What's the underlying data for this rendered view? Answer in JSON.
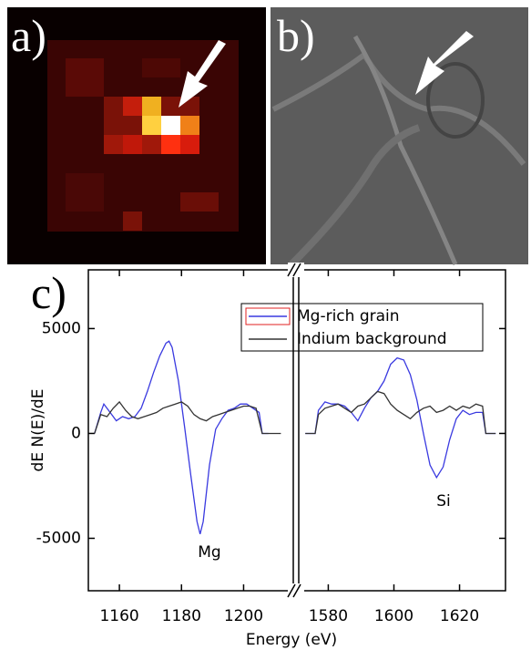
{
  "panel_labels": [
    "a)",
    "b)",
    "c)"
  ],
  "chart_data": [
    {
      "type": "line",
      "ylabel": "dE N(E)/dE",
      "xlabel": "Energy (eV)",
      "xlim": [
        1150,
        1216
      ],
      "xticks": [
        1160,
        1180,
        1200
      ],
      "ylim": [
        -7500,
        7800
      ],
      "yticks": [
        5000,
        0,
        -5000
      ],
      "legend": "upper right",
      "annotations": [
        "Mg"
      ],
      "series": [
        {
          "name": "Mg-rich grain",
          "color": "#3a3ae0",
          "x": [
            1152,
            1154,
            1155,
            1157,
            1159,
            1161,
            1163,
            1165,
            1167,
            1169,
            1171,
            1173,
            1175,
            1176,
            1177,
            1179,
            1181,
            1183,
            1185,
            1186,
            1187,
            1189,
            1191,
            1193,
            1195,
            1197,
            1199,
            1201,
            1203,
            1205,
            1206,
            1208
          ],
          "values": [
            0,
            1000,
            1400,
            1000,
            600,
            800,
            700,
            800,
            1200,
            2000,
            2900,
            3700,
            4300,
            4400,
            4100,
            2500,
            300,
            -2000,
            -4200,
            -4800,
            -4200,
            -1500,
            200,
            700,
            1100,
            1200,
            1400,
            1400,
            1200,
            1000,
            0,
            0
          ]
        },
        {
          "name": "Indium background",
          "color": "#333333",
          "x": [
            1152,
            1154,
            1156,
            1158,
            1160,
            1162,
            1164,
            1166,
            1168,
            1170,
            1172,
            1174,
            1176,
            1178,
            1180,
            1182,
            1184,
            1186,
            1188,
            1190,
            1192,
            1194,
            1196,
            1198,
            1200,
            1202,
            1204,
            1206,
            1212
          ],
          "values": [
            0,
            900,
            800,
            1200,
            1500,
            1100,
            800,
            700,
            800,
            900,
            1000,
            1200,
            1300,
            1400,
            1500,
            1300,
            900,
            700,
            600,
            800,
            900,
            1000,
            1100,
            1200,
            1300,
            1300,
            1200,
            0,
            0
          ]
        }
      ]
    },
    {
      "type": "line",
      "xlim": [
        1571,
        1634
      ],
      "xticks": [
        1580,
        1600,
        1620
      ],
      "ylim": [
        -7500,
        7800
      ],
      "annotations": [
        "Si"
      ],
      "series": [
        {
          "color": "#3a3ae0",
          "x": [
            1573,
            1576,
            1577,
            1579,
            1581,
            1583,
            1585,
            1587,
            1589,
            1591,
            1593,
            1595,
            1597,
            1599,
            1601,
            1603,
            1605,
            1607,
            1609,
            1611,
            1613,
            1615,
            1617,
            1619,
            1621,
            1623,
            1625,
            1627,
            1628,
            1631
          ],
          "values": [
            0,
            0,
            1100,
            1500,
            1400,
            1400,
            1300,
            1000,
            600,
            1200,
            1700,
            2000,
            2500,
            3300,
            3600,
            3500,
            2800,
            1600,
            0,
            -1500,
            -2100,
            -1600,
            -300,
            700,
            1100,
            900,
            1000,
            1000,
            0,
            0
          ]
        },
        {
          "color": "#333333",
          "x": [
            1573,
            1576,
            1577,
            1579,
            1581,
            1583,
            1585,
            1587,
            1589,
            1591,
            1593,
            1595,
            1597,
            1599,
            1601,
            1603,
            1605,
            1607,
            1609,
            1611,
            1613,
            1615,
            1617,
            1619,
            1621,
            1623,
            1625,
            1627,
            1628,
            1631
          ],
          "values": [
            0,
            0,
            900,
            1200,
            1300,
            1400,
            1200,
            1000,
            1300,
            1400,
            1700,
            2000,
            1900,
            1400,
            1100,
            900,
            700,
            1000,
            1200,
            1300,
            1000,
            1100,
            1300,
            1100,
            1300,
            1200,
            1400,
            1300,
            0,
            0
          ]
        }
      ]
    }
  ]
}
